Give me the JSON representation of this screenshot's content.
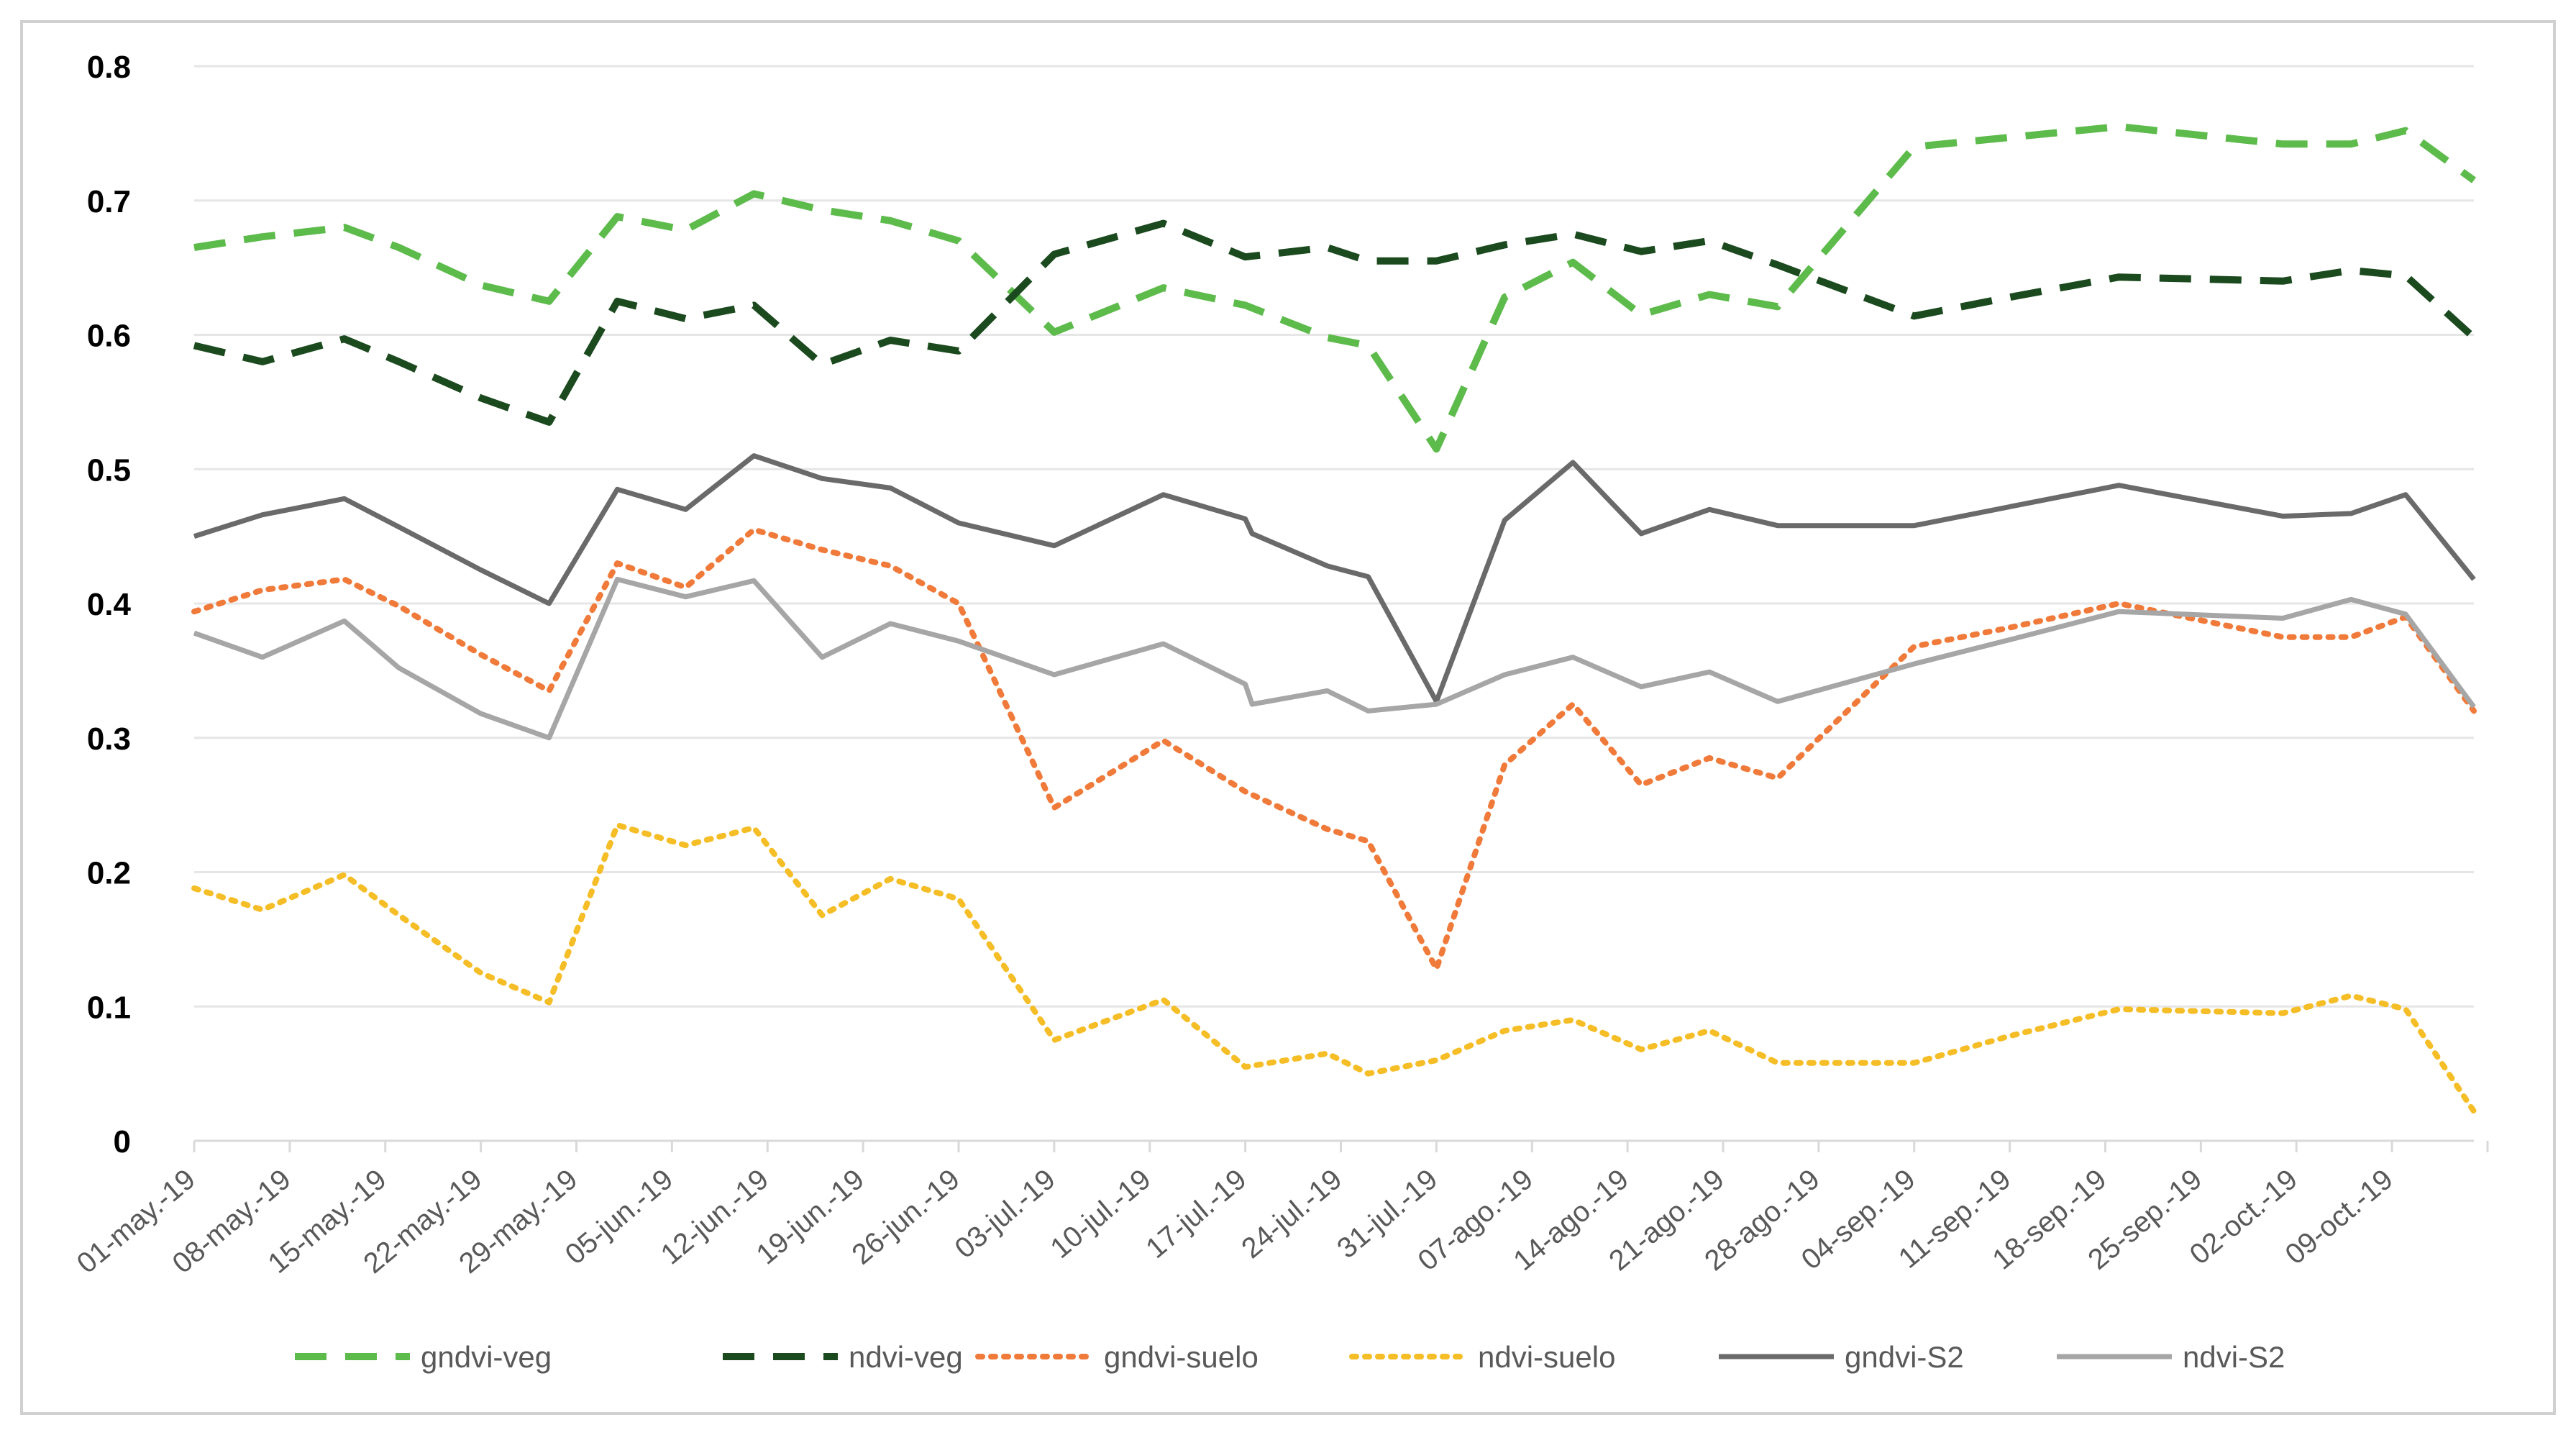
{
  "chart_data": {
    "type": "line",
    "title": "",
    "xlabel": "",
    "ylabel": "",
    "ylim": [
      0,
      0.8
    ],
    "yticks": [
      "0",
      "0.1",
      "0.2",
      "0.3",
      "0.4",
      "0.5",
      "0.6",
      "0.7",
      "0.8"
    ],
    "grid": true,
    "legend_position": "bottom",
    "categories": [
      "01-may.-19",
      "08-may.-19",
      "15-may.-19",
      "22-may.-19",
      "29-may.-19",
      "05-jun.-19",
      "12-jun.-19",
      "19-jun.-19",
      "26-jun.-19",
      "03-jul.-19",
      "10-jul.-19",
      "17-jul.-19",
      "24-jul.-19",
      "31-jul.-19",
      "07-ago.-19",
      "14-ago.-19",
      "21-ago.-19",
      "28-ago.-19",
      "04-sep.-19",
      "11-sep.-19",
      "18-sep.-19",
      "25-sep.-19",
      "02-oct.-19",
      "09-oct.-19"
    ],
    "x_start_day": 0,
    "x_end_day": 167,
    "series": [
      {
        "name": "gndvi-veg",
        "color": "#5DBB4B",
        "style": "dash",
        "points": [
          [
            0,
            0.665
          ],
          [
            5,
            0.673
          ],
          [
            11,
            0.68
          ],
          [
            15,
            0.665
          ],
          [
            21,
            0.637
          ],
          [
            26,
            0.625
          ],
          [
            31,
            0.688
          ],
          [
            36,
            0.678
          ],
          [
            41,
            0.705
          ],
          [
            46,
            0.693
          ],
          [
            51,
            0.685
          ],
          [
            56,
            0.67
          ],
          [
            63,
            0.602
          ],
          [
            71,
            0.635
          ],
          [
            77,
            0.622
          ],
          [
            83,
            0.598
          ],
          [
            86,
            0.592
          ],
          [
            91,
            0.515
          ],
          [
            96,
            0.628
          ],
          [
            101,
            0.654
          ],
          [
            106,
            0.615
          ],
          [
            111,
            0.63
          ],
          [
            116,
            0.621
          ],
          [
            126,
            0.74
          ],
          [
            133,
            0.747
          ],
          [
            141,
            0.755
          ],
          [
            153,
            0.742
          ],
          [
            158,
            0.742
          ],
          [
            162,
            0.752
          ],
          [
            167,
            0.715
          ]
        ]
      },
      {
        "name": "ndvi-veg",
        "color": "#1C4A1F",
        "style": "dash",
        "points": [
          [
            0,
            0.592
          ],
          [
            5,
            0.58
          ],
          [
            11,
            0.597
          ],
          [
            15,
            0.58
          ],
          [
            21,
            0.553
          ],
          [
            26,
            0.535
          ],
          [
            31,
            0.625
          ],
          [
            36,
            0.612
          ],
          [
            41,
            0.622
          ],
          [
            46,
            0.578
          ],
          [
            51,
            0.596
          ],
          [
            56,
            0.588
          ],
          [
            63,
            0.66
          ],
          [
            71,
            0.683
          ],
          [
            77,
            0.658
          ],
          [
            83,
            0.665
          ],
          [
            86,
            0.655
          ],
          [
            91,
            0.655
          ],
          [
            96,
            0.667
          ],
          [
            101,
            0.675
          ],
          [
            106,
            0.662
          ],
          [
            111,
            0.67
          ],
          [
            116,
            0.652
          ],
          [
            126,
            0.614
          ],
          [
            133,
            0.628
          ],
          [
            141,
            0.643
          ],
          [
            153,
            0.64
          ],
          [
            158,
            0.648
          ],
          [
            162,
            0.644
          ],
          [
            167,
            0.598
          ]
        ]
      },
      {
        "name": "gndvi-suelo",
        "color": "#F07A3A",
        "style": "dot",
        "points": [
          [
            0,
            0.394
          ],
          [
            5,
            0.41
          ],
          [
            11,
            0.418
          ],
          [
            15,
            0.398
          ],
          [
            21,
            0.362
          ],
          [
            26,
            0.335
          ],
          [
            31,
            0.43
          ],
          [
            36,
            0.412
          ],
          [
            41,
            0.455
          ],
          [
            46,
            0.44
          ],
          [
            51,
            0.428
          ],
          [
            56,
            0.4
          ],
          [
            63,
            0.248
          ],
          [
            71,
            0.298
          ],
          [
            77,
            0.26
          ],
          [
            83,
            0.232
          ],
          [
            86,
            0.223
          ],
          [
            91,
            0.128
          ],
          [
            96,
            0.28
          ],
          [
            101,
            0.325
          ],
          [
            106,
            0.265
          ],
          [
            111,
            0.285
          ],
          [
            116,
            0.27
          ],
          [
            126,
            0.368
          ],
          [
            133,
            0.382
          ],
          [
            141,
            0.4
          ],
          [
            153,
            0.375
          ],
          [
            158,
            0.375
          ],
          [
            162,
            0.39
          ],
          [
            167,
            0.32
          ]
        ]
      },
      {
        "name": "ndvi-suelo",
        "color": "#F5BD26",
        "style": "dot",
        "points": [
          [
            0,
            0.188
          ],
          [
            5,
            0.172
          ],
          [
            11,
            0.198
          ],
          [
            15,
            0.168
          ],
          [
            21,
            0.125
          ],
          [
            26,
            0.103
          ],
          [
            31,
            0.235
          ],
          [
            36,
            0.22
          ],
          [
            41,
            0.233
          ],
          [
            46,
            0.168
          ],
          [
            51,
            0.195
          ],
          [
            56,
            0.18
          ],
          [
            63,
            0.075
          ],
          [
            71,
            0.105
          ],
          [
            77,
            0.055
          ],
          [
            83,
            0.065
          ],
          [
            86,
            0.05
          ],
          [
            91,
            0.06
          ],
          [
            96,
            0.082
          ],
          [
            101,
            0.09
          ],
          [
            106,
            0.068
          ],
          [
            111,
            0.082
          ],
          [
            116,
            0.058
          ],
          [
            126,
            0.058
          ],
          [
            133,
            0.078
          ],
          [
            141,
            0.098
          ],
          [
            153,
            0.095
          ],
          [
            158,
            0.108
          ],
          [
            162,
            0.098
          ],
          [
            167,
            0.022
          ]
        ]
      },
      {
        "name": "gndvi-S2",
        "color": "#6A6A6A",
        "style": "solid",
        "points": [
          [
            0,
            0.45
          ],
          [
            5,
            0.466
          ],
          [
            11,
            0.478
          ],
          [
            15,
            0.457
          ],
          [
            21,
            0.425
          ],
          [
            26,
            0.4
          ],
          [
            31,
            0.485
          ],
          [
            36,
            0.47
          ],
          [
            41,
            0.51
          ],
          [
            46,
            0.493
          ],
          [
            51,
            0.486
          ],
          [
            56,
            0.46
          ],
          [
            63,
            0.443
          ],
          [
            71,
            0.481
          ],
          [
            77,
            0.463
          ],
          [
            77.5,
            0.452
          ],
          [
            83,
            0.428
          ],
          [
            86,
            0.42
          ],
          [
            91,
            0.327
          ],
          [
            96,
            0.462
          ],
          [
            101,
            0.505
          ],
          [
            106,
            0.452
          ],
          [
            111,
            0.47
          ],
          [
            116,
            0.458
          ],
          [
            126,
            0.458
          ],
          [
            133,
            0.472
          ],
          [
            141,
            0.488
          ],
          [
            153,
            0.465
          ],
          [
            158,
            0.467
          ],
          [
            162,
            0.481
          ],
          [
            167,
            0.418
          ]
        ]
      },
      {
        "name": "ndvi-S2",
        "color": "#A6A6A6",
        "style": "solid",
        "points": [
          [
            0,
            0.378
          ],
          [
            5,
            0.36
          ],
          [
            11,
            0.387
          ],
          [
            15,
            0.352
          ],
          [
            21,
            0.318
          ],
          [
            26,
            0.3
          ],
          [
            31,
            0.418
          ],
          [
            36,
            0.405
          ],
          [
            41,
            0.417
          ],
          [
            46,
            0.36
          ],
          [
            51,
            0.385
          ],
          [
            56,
            0.372
          ],
          [
            63,
            0.347
          ],
          [
            71,
            0.37
          ],
          [
            77,
            0.34
          ],
          [
            77.5,
            0.325
          ],
          [
            83,
            0.335
          ],
          [
            86,
            0.32
          ],
          [
            91,
            0.325
          ],
          [
            96,
            0.347
          ],
          [
            101,
            0.36
          ],
          [
            106,
            0.338
          ],
          [
            111,
            0.349
          ],
          [
            116,
            0.327
          ],
          [
            126,
            0.355
          ],
          [
            133,
            0.373
          ],
          [
            141,
            0.394
          ],
          [
            153,
            0.389
          ],
          [
            158,
            0.403
          ],
          [
            162,
            0.392
          ],
          [
            167,
            0.323
          ]
        ]
      }
    ]
  }
}
